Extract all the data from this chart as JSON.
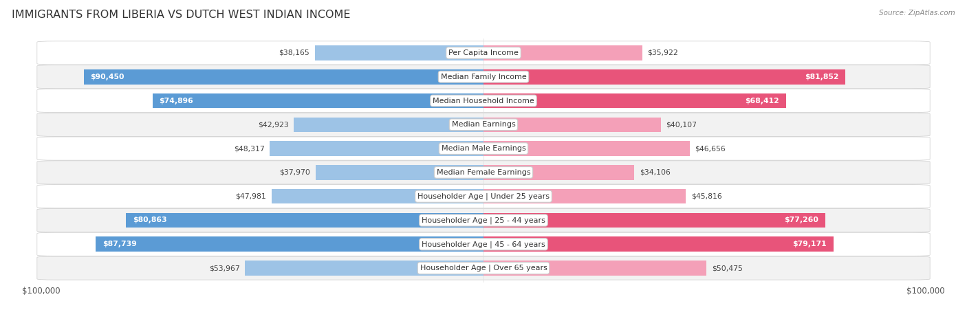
{
  "title": "IMMIGRANTS FROM LIBERIA VS DUTCH WEST INDIAN INCOME",
  "source": "Source: ZipAtlas.com",
  "categories": [
    "Per Capita Income",
    "Median Family Income",
    "Median Household Income",
    "Median Earnings",
    "Median Male Earnings",
    "Median Female Earnings",
    "Householder Age | Under 25 years",
    "Householder Age | 25 - 44 years",
    "Householder Age | 45 - 64 years",
    "Householder Age | Over 65 years"
  ],
  "liberia_values": [
    38165,
    90450,
    74896,
    42923,
    48317,
    37970,
    47981,
    80863,
    87739,
    53967
  ],
  "dutch_values": [
    35922,
    81852,
    68412,
    40107,
    46656,
    34106,
    45816,
    77260,
    79171,
    50475
  ],
  "liberia_labels": [
    "$38,165",
    "$90,450",
    "$74,896",
    "$42,923",
    "$48,317",
    "$37,970",
    "$47,981",
    "$80,863",
    "$87,739",
    "$53,967"
  ],
  "dutch_labels": [
    "$35,922",
    "$81,852",
    "$68,412",
    "$40,107",
    "$46,656",
    "$34,106",
    "$45,816",
    "$77,260",
    "$79,171",
    "$50,475"
  ],
  "liberia_color_full": "#5b9bd5",
  "liberia_color_light": "#9dc3e6",
  "dutch_color_full": "#e8547a",
  "dutch_color_light": "#f4a0b8",
  "threshold": 65000,
  "max_value": 100000,
  "fig_bg": "#ffffff",
  "row_bg_light": "#f2f2f2",
  "row_bg_white": "#ffffff",
  "bar_height": 0.62,
  "title_fontsize": 11.5,
  "label_fontsize": 8.0,
  "value_fontsize": 7.8,
  "tick_fontsize": 8.5,
  "source_fontsize": 7.5
}
